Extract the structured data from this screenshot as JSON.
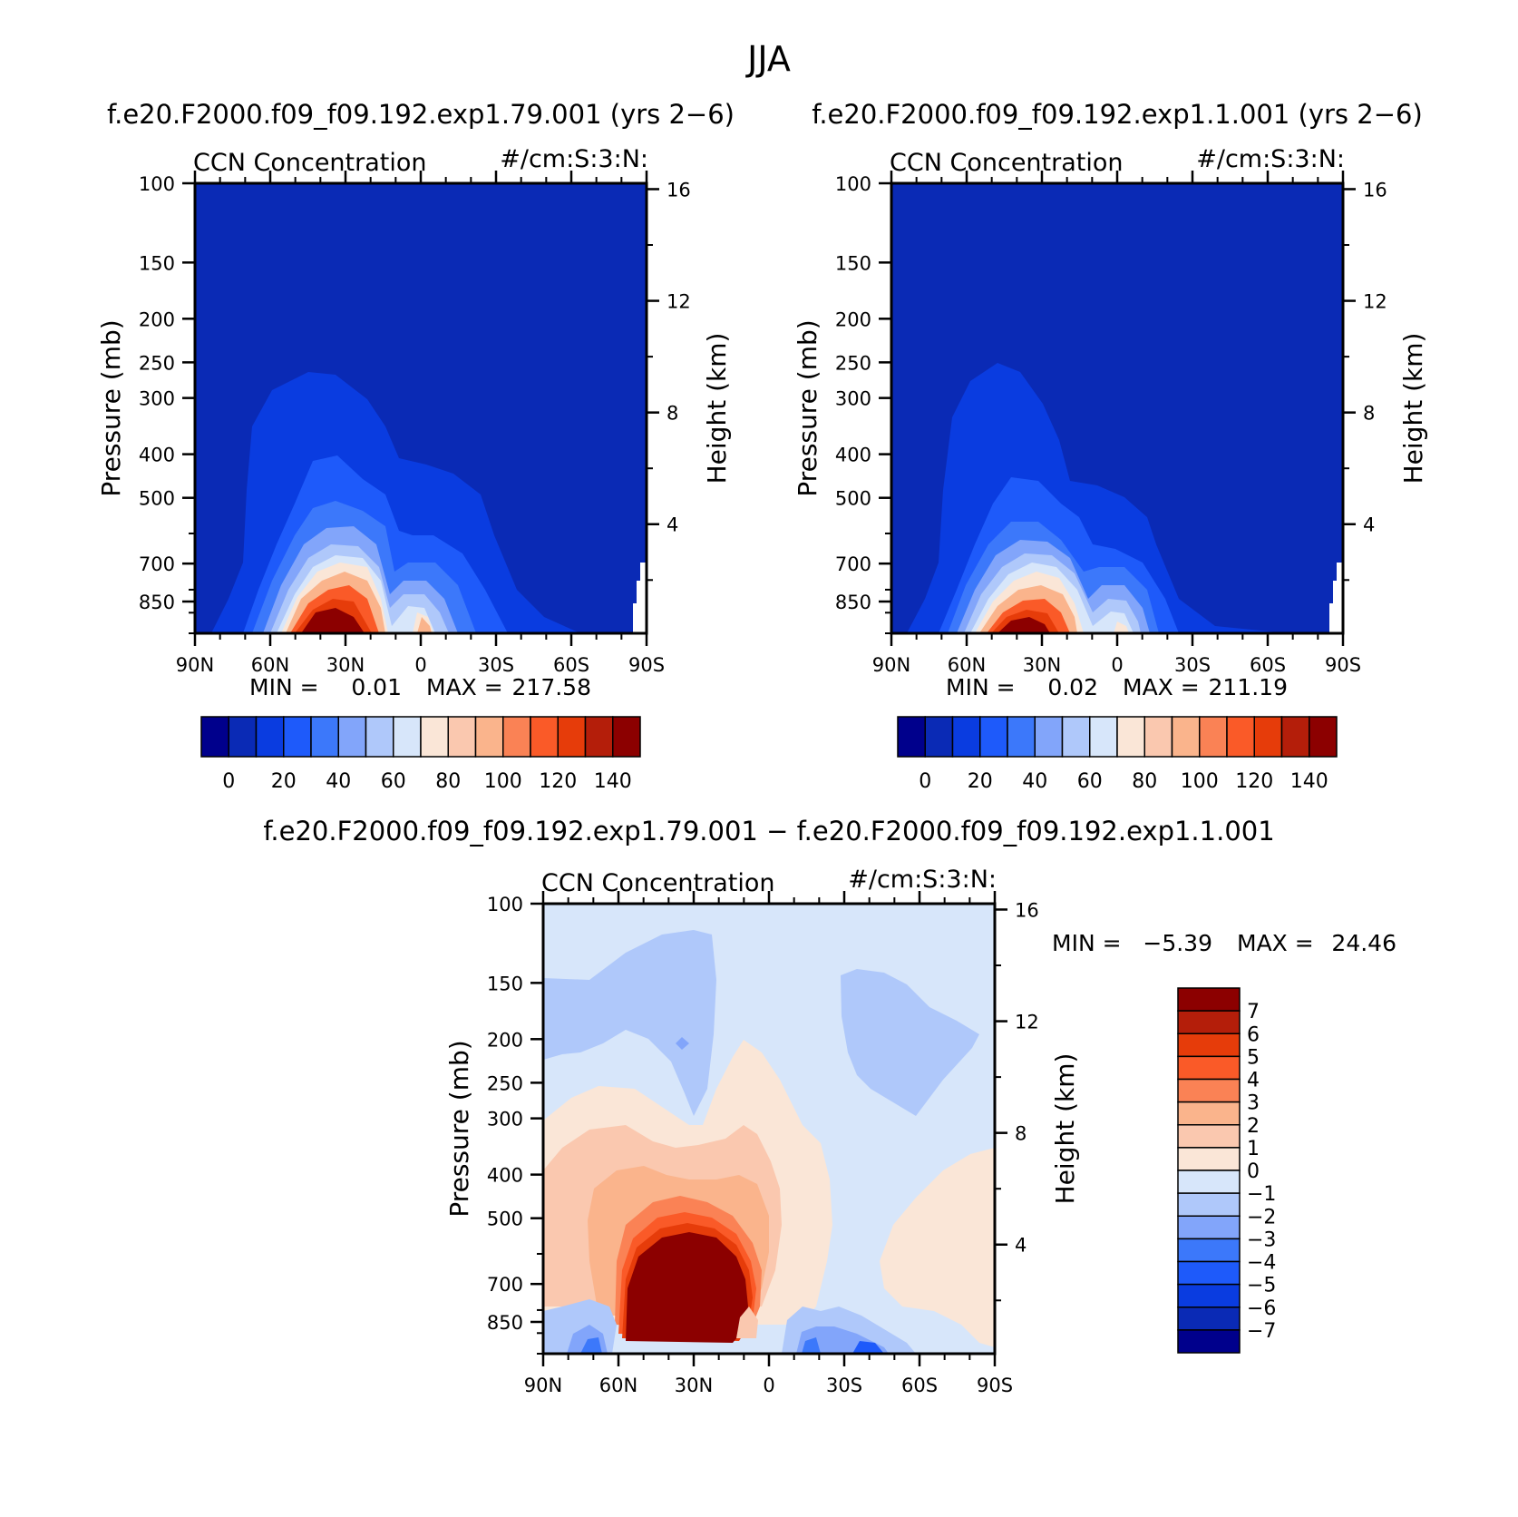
{
  "figure_title": "JJA",
  "colors": {
    "abs_levels": [
      "#00008c",
      "#0a2ab5",
      "#0a3ce0",
      "#1e5afa",
      "#3c78fa",
      "#82a5fa",
      "#afc8fa",
      "#d7e6fa",
      "#fae6d7",
      "#fac8af",
      "#fab48c",
      "#fa8255",
      "#fa5a28",
      "#e63c0a",
      "#b41e0a",
      "#8c0000"
    ],
    "diff_levels": [
      "#00008c",
      "#0a2ab5",
      "#0a3ce0",
      "#1e5afa",
      "#3c78fa",
      "#82a5fa",
      "#afc8fa",
      "#d7e6fa",
      "#fae6d7",
      "#fac8af",
      "#fab48c",
      "#fa8255",
      "#fa5a28",
      "#e63c0a",
      "#b41e0a",
      "#8c0000"
    ]
  },
  "chart_data": [
    {
      "type": "heatmap",
      "title": "f.e20.F2000.f09_f09.192.exp1.79.001 (yrs 2−6)",
      "left_label": "CCN Concentration",
      "right_label": "#/cm:S:3:N:",
      "xlabel": "",
      "ylabel": "Pressure (mb)",
      "ylabel_right": "Height (km)",
      "x_ticks": [
        "90N",
        "60N",
        "30N",
        "0",
        "30S",
        "60S",
        "90S"
      ],
      "y_ticks": [
        "100",
        "150",
        "200",
        "250",
        "300",
        "400",
        "500",
        "700",
        "850"
      ],
      "y_ticks_right": [
        "16",
        "12",
        "8",
        "4"
      ],
      "y_scale": "log",
      "ylim": [
        100,
        1000
      ],
      "min_label": "MIN =",
      "min_value": "0.01",
      "max_label": "MAX =",
      "max_value": "217.58",
      "colorbar_ticks": [
        "0",
        "20",
        "40",
        "60",
        "80",
        "100",
        "120",
        "140"
      ],
      "colorbar_levels": [
        0,
        10,
        20,
        30,
        40,
        50,
        60,
        70,
        80,
        90,
        100,
        110,
        120,
        130,
        140
      ],
      "variant": "a"
    },
    {
      "type": "heatmap",
      "title": "f.e20.F2000.f09_f09.192.exp1.1.001 (yrs 2−6)",
      "left_label": "CCN Concentration",
      "right_label": "#/cm:S:3:N:",
      "xlabel": "",
      "ylabel": "Pressure (mb)",
      "ylabel_right": "Height (km)",
      "x_ticks": [
        "90N",
        "60N",
        "30N",
        "0",
        "30S",
        "60S",
        "90S"
      ],
      "y_ticks": [
        "100",
        "150",
        "200",
        "250",
        "300",
        "400",
        "500",
        "700",
        "850"
      ],
      "y_ticks_right": [
        "16",
        "12",
        "8",
        "4"
      ],
      "y_scale": "log",
      "ylim": [
        100,
        1000
      ],
      "min_label": "MIN =",
      "min_value": "0.02",
      "max_label": "MAX =",
      "max_value": "211.19",
      "colorbar_ticks": [
        "0",
        "20",
        "40",
        "60",
        "80",
        "100",
        "120",
        "140"
      ],
      "colorbar_levels": [
        0,
        10,
        20,
        30,
        40,
        50,
        60,
        70,
        80,
        90,
        100,
        110,
        120,
        130,
        140
      ],
      "variant": "b"
    },
    {
      "type": "heatmap",
      "title": "f.e20.F2000.f09_f09.192.exp1.79.001 − f.e20.F2000.f09_f09.192.exp1.1.001",
      "left_label": "CCN Concentration",
      "right_label": "#/cm:S:3:N:",
      "xlabel": "",
      "ylabel": "Pressure (mb)",
      "ylabel_right": "Height (km)",
      "x_ticks": [
        "90N",
        "60N",
        "30N",
        "0",
        "30S",
        "60S",
        "90S"
      ],
      "y_ticks": [
        "100",
        "150",
        "200",
        "250",
        "300",
        "400",
        "500",
        "700",
        "850"
      ],
      "y_ticks_right": [
        "16",
        "12",
        "8",
        "4"
      ],
      "y_scale": "log",
      "ylim": [
        100,
        1000
      ],
      "min_label": "MIN =",
      "min_value": "−5.39",
      "max_label": "MAX =",
      "max_value": "24.46",
      "colorbar_ticks": [
        "7",
        "6",
        "5",
        "4",
        "3",
        "2",
        "1",
        "0",
        "−1",
        "−2",
        "−3",
        "−4",
        "−5",
        "−6",
        "−7"
      ],
      "colorbar_levels": [
        7,
        6,
        5,
        4,
        3,
        2,
        1,
        0,
        -1,
        -2,
        -3,
        -4,
        -5,
        -6,
        -7
      ]
    }
  ]
}
